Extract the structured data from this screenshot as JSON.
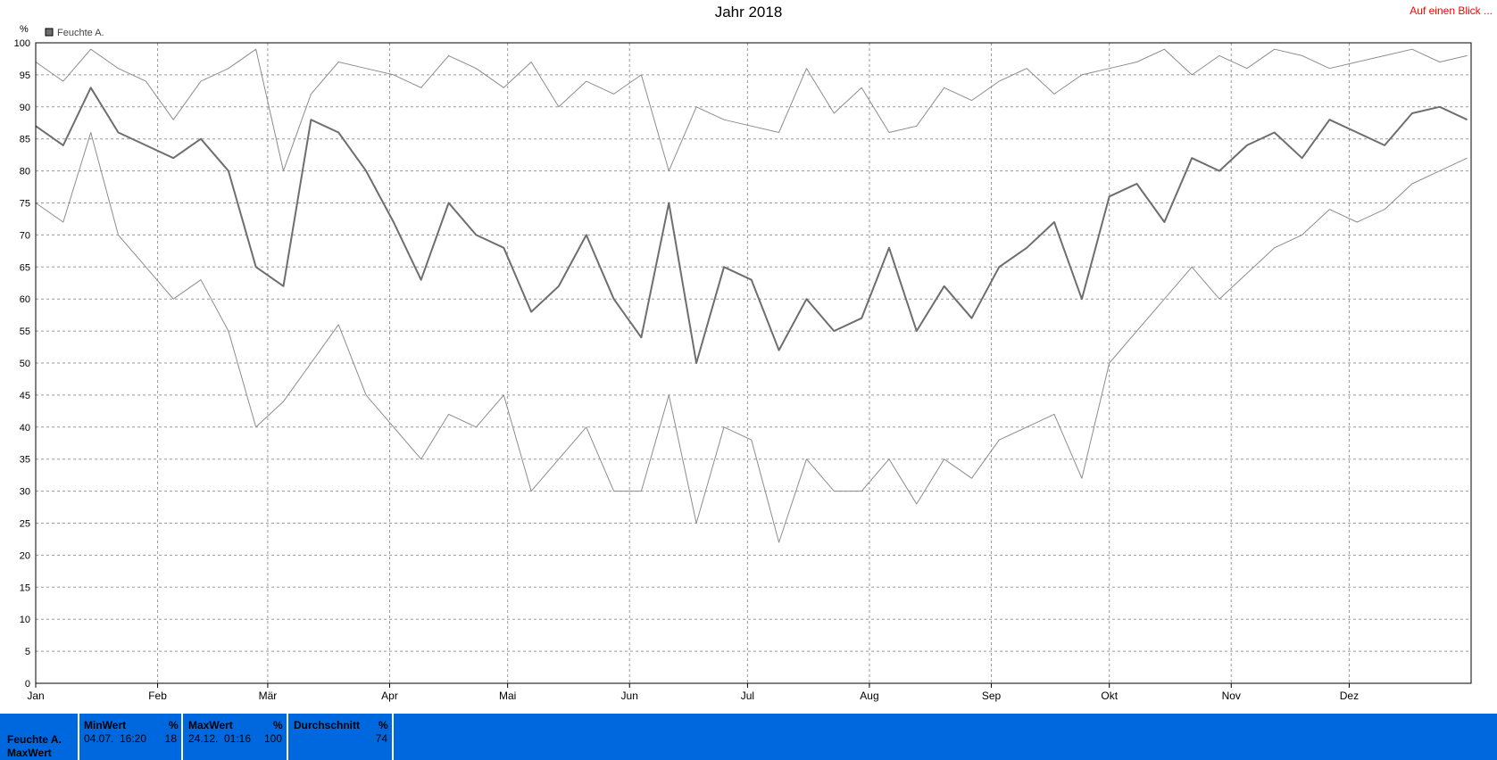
{
  "header": {
    "title": "Jahr 2018",
    "overview_link": "Auf einen Blick ..."
  },
  "colors": {
    "max_line": "#8c8c8c",
    "min_line": "#8c8c8c",
    "avg_line": "#6e6e6e",
    "grid": "#9a9a9a",
    "stats_bar": "#0068de",
    "link": "#ff0000"
  },
  "chart_data": {
    "type": "line",
    "title": "Jahr 2018",
    "ylabel": "%",
    "ylim": [
      0,
      100
    ],
    "yticks": [
      0,
      5,
      10,
      15,
      20,
      25,
      30,
      35,
      40,
      45,
      50,
      55,
      60,
      65,
      70,
      75,
      80,
      85,
      90,
      95,
      100
    ],
    "xlim": [
      1,
      366
    ],
    "month_ticks": [
      {
        "label": "Jan",
        "day": 1
      },
      {
        "label": "Feb",
        "day": 32
      },
      {
        "label": "Mär",
        "day": 60
      },
      {
        "label": "Apr",
        "day": 91
      },
      {
        "label": "Mai",
        "day": 121
      },
      {
        "label": "Jun",
        "day": 152
      },
      {
        "label": "Jul",
        "day": 182
      },
      {
        "label": "Aug",
        "day": 213
      },
      {
        "label": "Sep",
        "day": 244
      },
      {
        "label": "Okt",
        "day": 274
      },
      {
        "label": "Nov",
        "day": 305
      },
      {
        "label": "Dez",
        "day": 335
      }
    ],
    "grid": true,
    "legend": {
      "position": "top-left",
      "entries": [
        "Feuchte A."
      ]
    },
    "x": [
      1,
      8,
      15,
      22,
      29,
      36,
      43,
      50,
      57,
      64,
      71,
      78,
      85,
      92,
      99,
      106,
      113,
      120,
      127,
      134,
      141,
      148,
      155,
      162,
      169,
      176,
      183,
      190,
      197,
      204,
      211,
      218,
      225,
      232,
      239,
      246,
      253,
      260,
      267,
      274,
      281,
      288,
      295,
      302,
      309,
      316,
      323,
      330,
      337,
      344,
      351,
      358,
      365
    ],
    "series": [
      {
        "role": "max",
        "values": [
          97,
          94,
          99,
          96,
          94,
          88,
          94,
          96,
          99,
          80,
          92,
          97,
          96,
          95,
          93,
          98,
          96,
          93,
          97,
          90,
          94,
          92,
          95,
          80,
          90,
          88,
          87,
          86,
          96,
          89,
          93,
          86,
          87,
          93,
          91,
          94,
          96,
          92,
          95,
          96,
          97,
          99,
          95,
          98,
          96,
          99,
          98,
          96,
          97,
          98,
          99,
          97,
          98
        ]
      },
      {
        "role": "avg",
        "values": [
          87,
          84,
          93,
          86,
          84,
          82,
          85,
          80,
          65,
          62,
          88,
          86,
          80,
          72,
          63,
          75,
          70,
          68,
          58,
          62,
          70,
          60,
          54,
          75,
          50,
          65,
          63,
          52,
          60,
          55,
          57,
          68,
          55,
          62,
          57,
          65,
          68,
          72,
          60,
          76,
          78,
          72,
          82,
          80,
          84,
          86,
          82,
          88,
          86,
          84,
          89,
          90,
          88
        ]
      },
      {
        "role": "min",
        "values": [
          75,
          72,
          86,
          70,
          65,
          60,
          63,
          55,
          40,
          44,
          50,
          56,
          45,
          40,
          35,
          42,
          40,
          45,
          30,
          35,
          40,
          30,
          30,
          45,
          25,
          40,
          38,
          22,
          35,
          30,
          30,
          35,
          28,
          35,
          32,
          38,
          40,
          42,
          32,
          50,
          55,
          60,
          65,
          60,
          64,
          68,
          70,
          74,
          72,
          74,
          78,
          80,
          82
        ]
      }
    ]
  },
  "stats": {
    "row_label": "Feuchte A.",
    "row_label2": "MaxWert",
    "min": {
      "header": "MinWert",
      "unit": "%",
      "date": "04.07.",
      "time": "16:20",
      "value": "18"
    },
    "max": {
      "header": "MaxWert",
      "unit": "%",
      "date": "24.12.",
      "time": "01:16",
      "value": "100"
    },
    "avg": {
      "header": "Durchschnitt",
      "unit": "%",
      "value": "74"
    }
  }
}
